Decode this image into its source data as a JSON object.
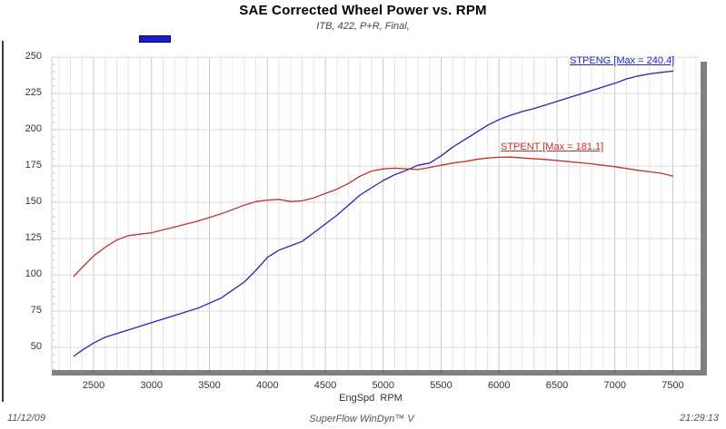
{
  "footer": {
    "date": "11/12/09",
    "app": "SuperFlow WinDyn™ V",
    "time": "21:29:13"
  },
  "chart_data": {
    "type": "line",
    "title": "SAE Corrected Wheel Power vs. RPM",
    "subtitle": "ITB, 422, P+R, Final,",
    "xlabel": "EngSpd  RPM",
    "ylabel": "",
    "xlim": [
      2140,
      7745
    ],
    "ylim": [
      32.5,
      250
    ],
    "x_major_ticks": [
      2500,
      3000,
      3500,
      4000,
      4500,
      5000,
      5500,
      6000,
      6500,
      7000,
      7500
    ],
    "x_minor_step": 100,
    "y_major_ticks": [
      250,
      225,
      200,
      175,
      150,
      125,
      100,
      75,
      50
    ],
    "y_minor_step": 5,
    "grid": true,
    "legend_position": "top-left",
    "legend_marker": {
      "fill": "#1a1ac8",
      "border": "#00007a"
    },
    "frame_color": "#808080",
    "series": [
      {
        "name": "STPENG",
        "label": "STPENG [Max = 240.4]",
        "max": 240.4,
        "color": "#2525b4",
        "points": [
          [
            2330,
            44
          ],
          [
            2400,
            48
          ],
          [
            2500,
            53
          ],
          [
            2600,
            57
          ],
          [
            2800,
            62
          ],
          [
            3000,
            67
          ],
          [
            3200,
            72
          ],
          [
            3400,
            77
          ],
          [
            3600,
            84
          ],
          [
            3800,
            95
          ],
          [
            3900,
            103
          ],
          [
            4000,
            112
          ],
          [
            4100,
            117
          ],
          [
            4200,
            120
          ],
          [
            4300,
            123
          ],
          [
            4400,
            129
          ],
          [
            4500,
            135
          ],
          [
            4600,
            141
          ],
          [
            4700,
            148
          ],
          [
            4800,
            155
          ],
          [
            4900,
            160
          ],
          [
            5000,
            165
          ],
          [
            5100,
            169
          ],
          [
            5200,
            172
          ],
          [
            5300,
            175.5
          ],
          [
            5400,
            177
          ],
          [
            5500,
            182
          ],
          [
            5600,
            188
          ],
          [
            5700,
            193
          ],
          [
            5800,
            198
          ],
          [
            5900,
            203
          ],
          [
            6000,
            207
          ],
          [
            6100,
            210
          ],
          [
            6200,
            212.5
          ],
          [
            6300,
            214.5
          ],
          [
            6400,
            217
          ],
          [
            6600,
            222
          ],
          [
            6800,
            227
          ],
          [
            7000,
            232
          ],
          [
            7100,
            235
          ],
          [
            7200,
            237
          ],
          [
            7300,
            238.5
          ],
          [
            7400,
            239.5
          ],
          [
            7500,
            240.4
          ]
        ]
      },
      {
        "name": "STPENT",
        "label": "STPENT [Max = 181.1]",
        "max": 181.1,
        "color": "#c03030",
        "points": [
          [
            2330,
            99
          ],
          [
            2400,
            105
          ],
          [
            2500,
            113
          ],
          [
            2600,
            119
          ],
          [
            2700,
            124
          ],
          [
            2800,
            127
          ],
          [
            2900,
            128
          ],
          [
            3000,
            129
          ],
          [
            3200,
            133
          ],
          [
            3400,
            137
          ],
          [
            3600,
            142
          ],
          [
            3800,
            148
          ],
          [
            3900,
            150.5
          ],
          [
            4000,
            151.5
          ],
          [
            4100,
            152
          ],
          [
            4200,
            150.5
          ],
          [
            4300,
            151
          ],
          [
            4400,
            153
          ],
          [
            4500,
            156
          ],
          [
            4600,
            159
          ],
          [
            4700,
            163
          ],
          [
            4800,
            168
          ],
          [
            4900,
            171.5
          ],
          [
            5000,
            173
          ],
          [
            5100,
            173.5
          ],
          [
            5200,
            173
          ],
          [
            5300,
            172.5
          ],
          [
            5400,
            174
          ],
          [
            5500,
            175.5
          ],
          [
            5600,
            177
          ],
          [
            5700,
            178
          ],
          [
            5800,
            179.5
          ],
          [
            5900,
            180.5
          ],
          [
            6000,
            181
          ],
          [
            6100,
            181.1
          ],
          [
            6200,
            180.5
          ],
          [
            6400,
            179.5
          ],
          [
            6600,
            178
          ],
          [
            6800,
            176.5
          ],
          [
            7000,
            174.5
          ],
          [
            7200,
            172
          ],
          [
            7300,
            171
          ],
          [
            7400,
            170
          ],
          [
            7500,
            168
          ]
        ]
      }
    ]
  }
}
